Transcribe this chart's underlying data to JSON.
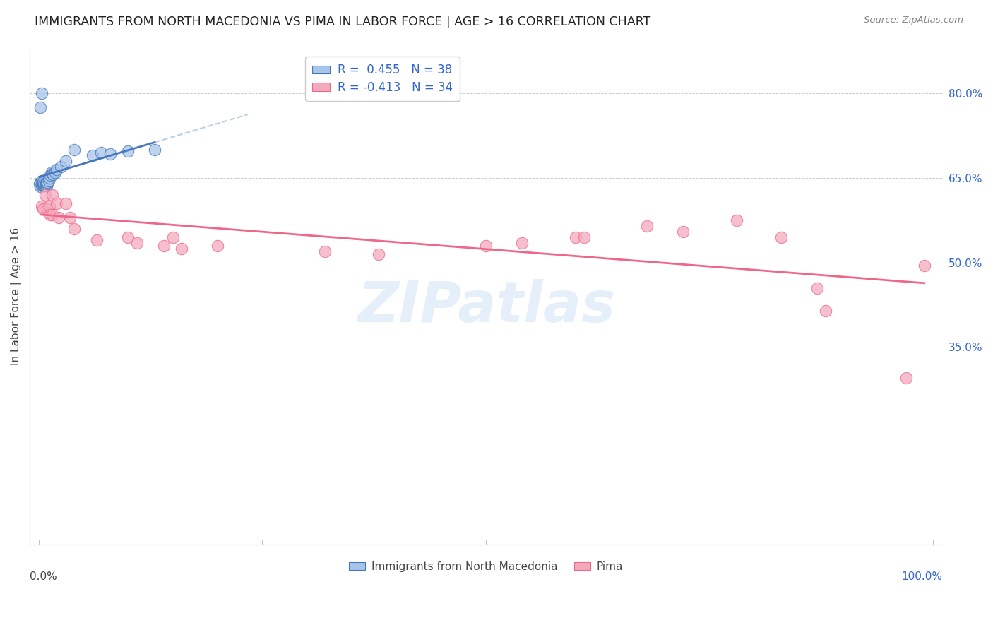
{
  "title": "IMMIGRANTS FROM NORTH MACEDONIA VS PIMA IN LABOR FORCE | AGE > 16 CORRELATION CHART",
  "source": "Source: ZipAtlas.com",
  "ylabel": "In Labor Force | Age > 16",
  "xlim": [
    -0.01,
    1.01
  ],
  "ylim": [
    0.0,
    0.88
  ],
  "y_ticks": [
    0.35,
    0.5,
    0.65,
    0.8
  ],
  "blue_R": 0.455,
  "blue_N": 38,
  "pink_R": -0.413,
  "pink_N": 34,
  "blue_fill": "#A8C4E8",
  "blue_edge": "#4477BB",
  "blue_line": "#4477BB",
  "blue_dash": "#99BBDD",
  "pink_fill": "#F4AABD",
  "pink_edge": "#EE6688",
  "pink_line": "#EE6688",
  "legend_blue_label": "Immigrants from North Macedonia",
  "legend_pink_label": "Pima",
  "watermark": "ZIPatlas",
  "background_color": "#FFFFFF",
  "grid_color": "#CCCCCC",
  "blue_x": [
    0.001,
    0.002,
    0.002,
    0.003,
    0.003,
    0.004,
    0.004,
    0.005,
    0.005,
    0.006,
    0.006,
    0.007,
    0.007,
    0.008,
    0.008,
    0.008,
    0.009,
    0.009,
    0.01,
    0.01,
    0.011,
    0.012,
    0.013,
    0.014,
    0.015,
    0.016,
    0.018,
    0.02,
    0.025,
    0.03,
    0.04,
    0.06,
    0.07,
    0.08,
    0.1,
    0.13,
    0.002,
    0.003
  ],
  "blue_y": [
    0.64,
    0.635,
    0.642,
    0.638,
    0.645,
    0.636,
    0.641,
    0.638,
    0.643,
    0.637,
    0.64,
    0.636,
    0.639,
    0.637,
    0.64,
    0.638,
    0.636,
    0.641,
    0.64,
    0.643,
    0.645,
    0.65,
    0.655,
    0.66,
    0.658,
    0.656,
    0.66,
    0.665,
    0.67,
    0.68,
    0.7,
    0.69,
    0.695,
    0.693,
    0.698,
    0.7,
    0.775,
    0.8
  ],
  "pink_x": [
    0.003,
    0.005,
    0.007,
    0.01,
    0.012,
    0.013,
    0.015,
    0.015,
    0.02,
    0.022,
    0.03,
    0.035,
    0.04,
    0.065,
    0.1,
    0.11,
    0.14,
    0.15,
    0.16,
    0.2,
    0.32,
    0.38,
    0.5,
    0.54,
    0.6,
    0.61,
    0.68,
    0.72,
    0.78,
    0.83,
    0.87,
    0.88,
    0.97,
    0.99
  ],
  "pink_y": [
    0.6,
    0.595,
    0.62,
    0.595,
    0.6,
    0.585,
    0.62,
    0.585,
    0.605,
    0.58,
    0.605,
    0.58,
    0.56,
    0.54,
    0.545,
    0.535,
    0.53,
    0.545,
    0.525,
    0.53,
    0.52,
    0.515,
    0.53,
    0.535,
    0.545,
    0.545,
    0.565,
    0.555,
    0.575,
    0.545,
    0.455,
    0.415,
    0.295,
    0.495
  ]
}
